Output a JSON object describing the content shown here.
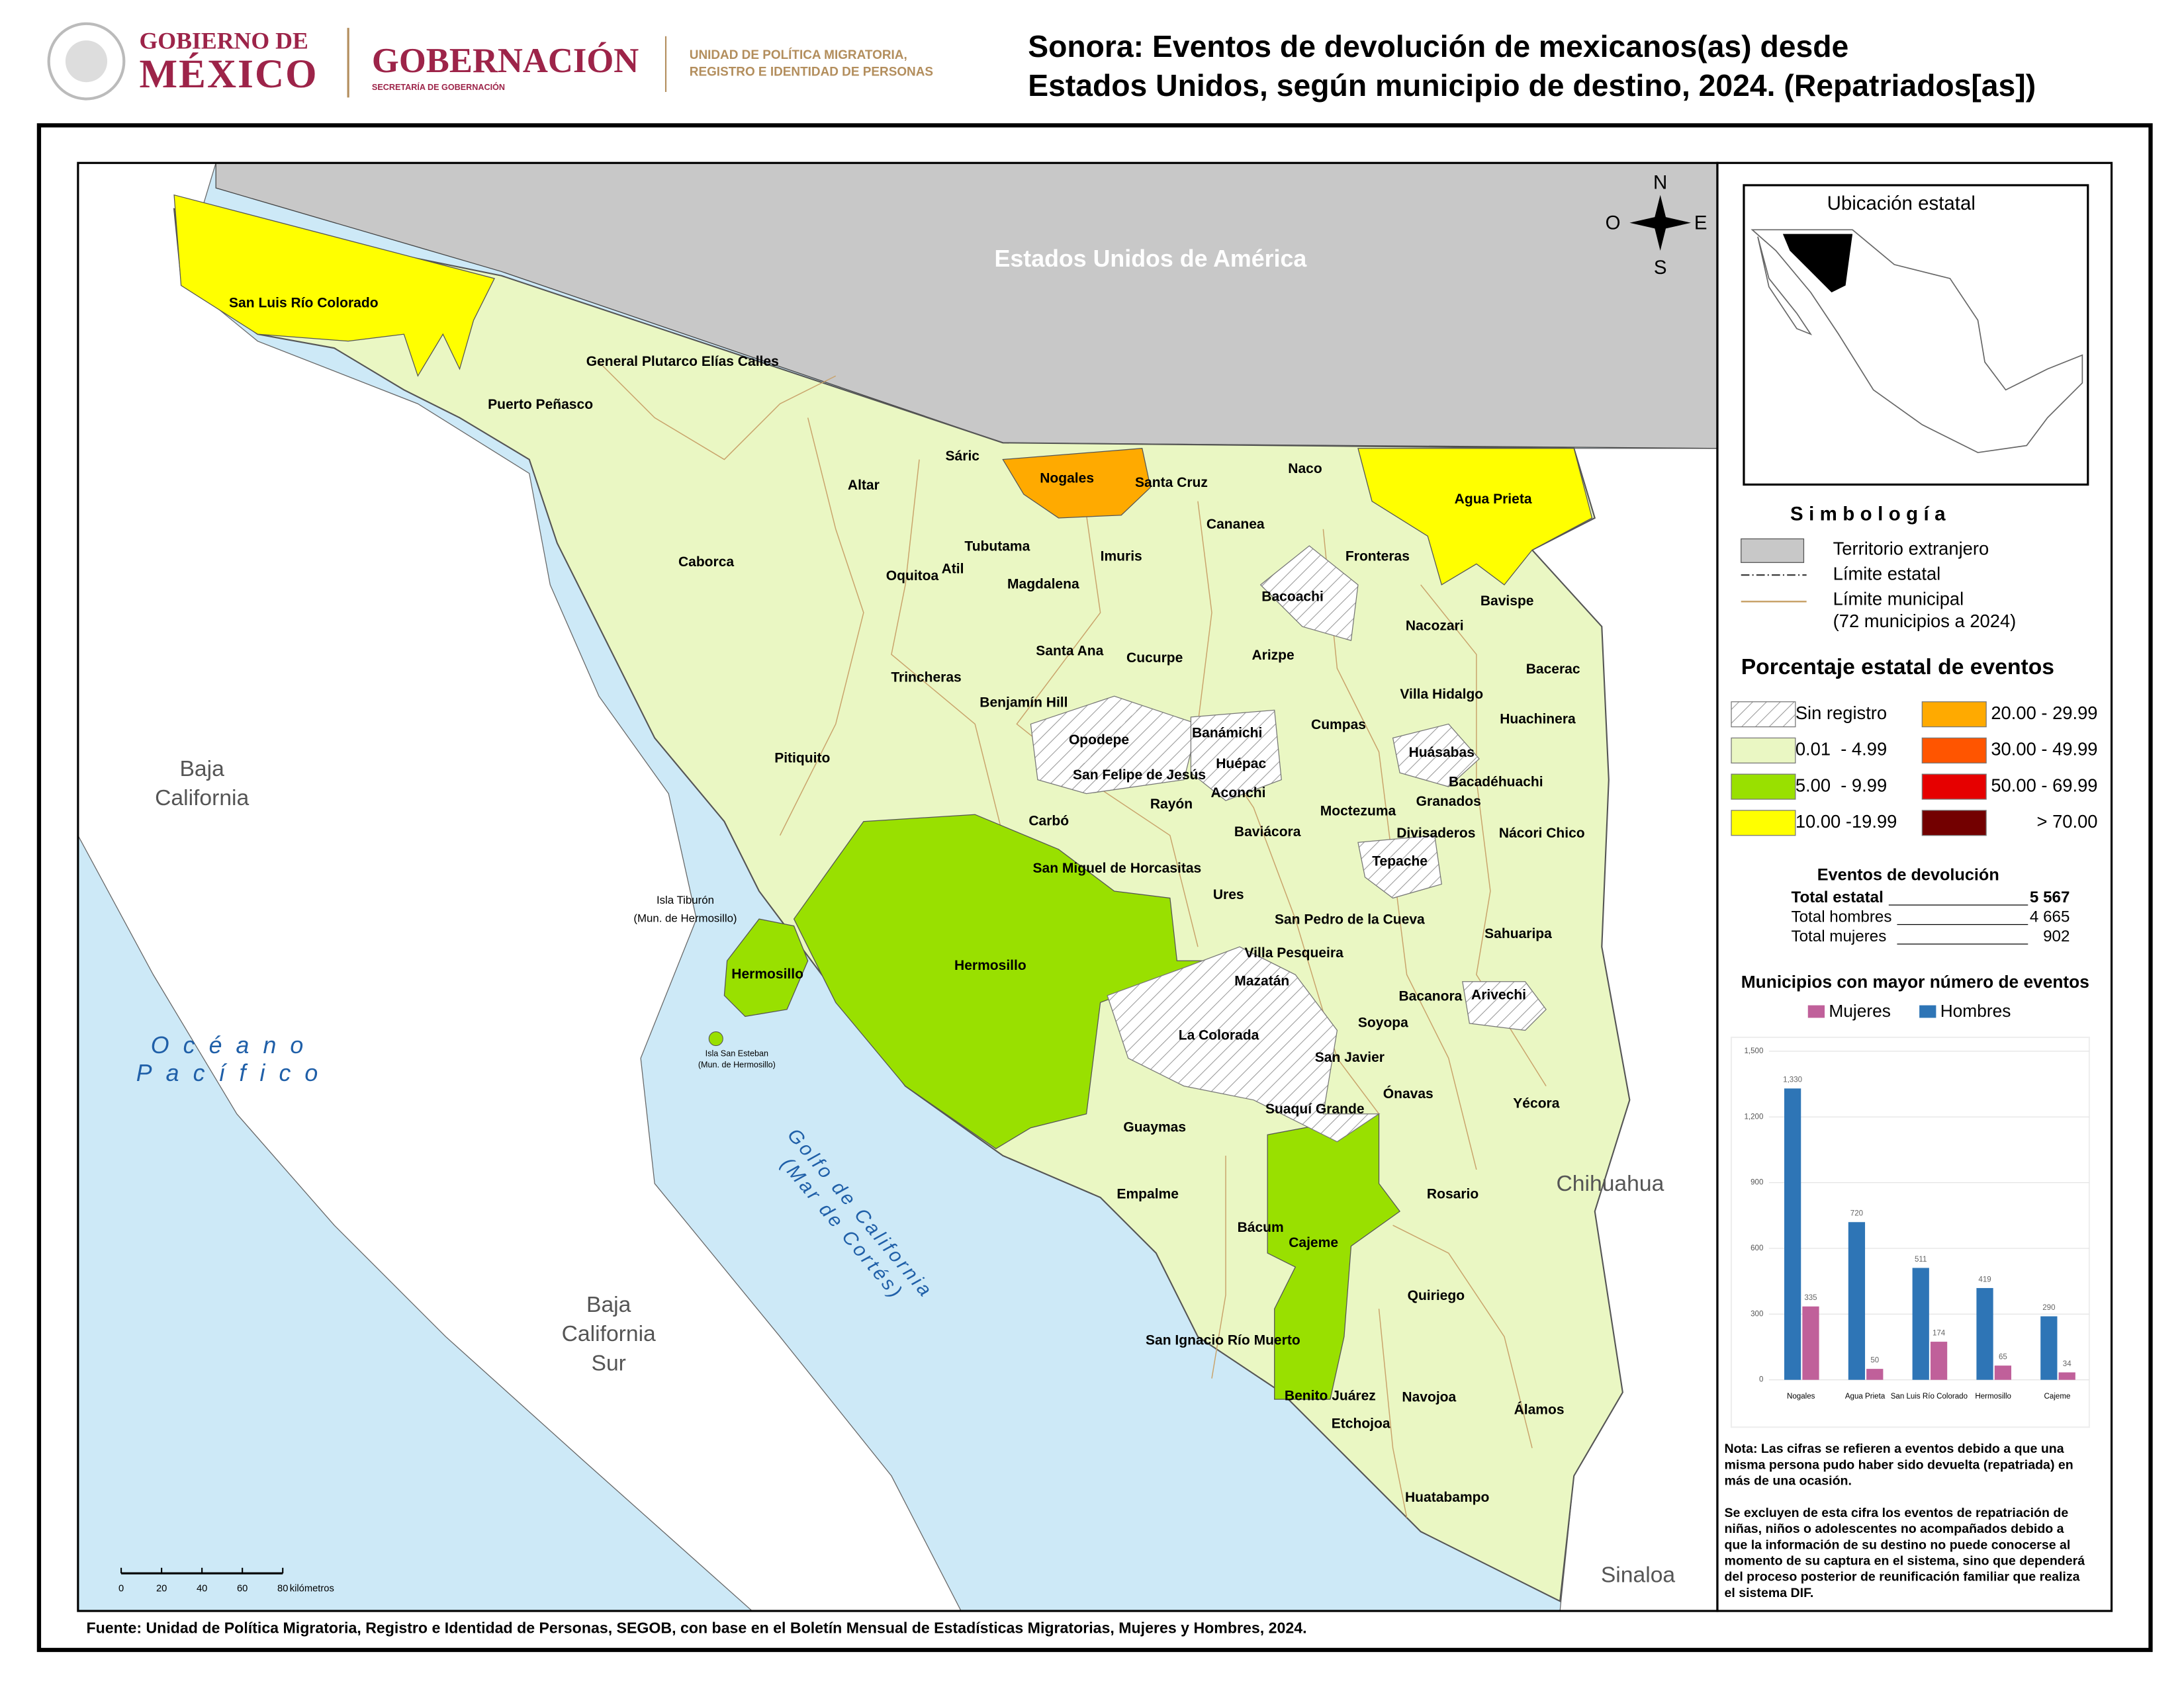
{
  "header": {
    "logo_line_1": "GOBIERNO DE",
    "logo_line_2": "MÉXICO",
    "agency": "GOBERNACIÓN",
    "agency_sub": "SECRETARÍA DE GOBERNACIÓN",
    "unit_line_1": "UNIDAD DE POLÍTICA MIGRATORIA,",
    "unit_line_2": "REGISTRO E IDENTIDAD DE PERSONAS",
    "title_lines": [
      "Sonora: Eventos de devolución de mexicanos(as) desde",
      "Estados Unidos, según municipio de destino, 2024. (Repatriados[as])"
    ]
  },
  "map": {
    "regions": [
      {
        "lines": [
          "Estados Unidos de América"
        ]
      },
      {
        "lines": [
          "Baja",
          "California"
        ]
      },
      {
        "lines": [
          "Baja",
          "California",
          "Sur"
        ]
      },
      {
        "lines": [
          "Chihuahua"
        ]
      },
      {
        "lines": [
          "Sinaloa"
        ]
      }
    ],
    "sea_labels": [
      {
        "lines": [
          "Océano",
          "Pacífico"
        ]
      },
      {
        "lines": [
          "Golfo de California",
          "(Mar de Cortés)"
        ]
      }
    ],
    "municipalities": [
      "San Luis Río Colorado",
      "General Plutarco Elías Calles",
      "Puerto Peñasco",
      "Caborca",
      "Altar",
      "Sáric",
      "Nogales",
      "Santa Cruz",
      "Naco",
      "Agua Prieta",
      "Cananea",
      "Tubutama",
      "Atil",
      "Oquitoa",
      "Imuris",
      "Magdalena",
      "Fronteras",
      "Bacoachi",
      "Bavispe",
      "Nacozari",
      "Santa Ana",
      "Cucurpe",
      "Arizpe",
      "Bacerac",
      "Trincheras",
      "Benjamín Hill",
      "Villa Hidalgo",
      "Huachinera",
      "Cumpas",
      "Opodepe",
      "Banámichi",
      "Huásabas",
      "Pitiquito",
      "Huépac",
      "San Felipe de Jesús",
      "Bacadéhuachi",
      "Aconchi",
      "Rayón",
      "Granados",
      "Moctezuma",
      "Carbó",
      "Baviácora",
      "Divisaderos",
      "Nácori Chico",
      "Tepache",
      "San Miguel de Horcasitas",
      "Ures",
      "San Pedro de la Cueva",
      "Sahuaripa",
      "Hermosillo",
      "Villa Pesqueira",
      "Mazatán",
      "Bacanora",
      "Arivechi",
      "La Colorada",
      "Soyopa",
      "San Javier",
      "Ónavas",
      "Yécora",
      "Suaquí Grande",
      "Guaymas",
      "Rosario",
      "Empalme",
      "Bácum",
      "Cajeme",
      "Quiriego",
      "San Ignacio Río Muerto",
      "Benito Juárez",
      "Navojoa",
      "Álamos",
      "Etchojoa",
      "Huatabampo"
    ],
    "islands": [
      "Isla Tiburón",
      "(Mun. de Hermosillo)",
      "Hermosillo",
      "Isla San Esteban",
      "(Mun. de Hermosillo)"
    ],
    "compass": [
      "N",
      "O",
      "E",
      "S"
    ],
    "scale": {
      "ticks": [
        0,
        20,
        40,
        60,
        80
      ],
      "unit": "kilómetros"
    }
  },
  "inset_title": "Ubicación estatal",
  "legend": {
    "title": "Simbología",
    "items": [
      "Territorio extranjero",
      "Límite estatal",
      "Límite municipal",
      "(72 municipios a 2024)"
    ],
    "classes_title": "Porcentaje estatal de eventos",
    "classes": [
      {
        "label": "Sin registro",
        "color": "hatch"
      },
      {
        "label": "0.01  - 4.99",
        "color": "#eaf7c3"
      },
      {
        "label": "5.00  - 9.99",
        "color": "#99e000"
      },
      {
        "label": "10.00 -19.99",
        "color": "#ffff00"
      },
      {
        "label": "20.00 - 29.99",
        "color": "#ffaa00"
      },
      {
        "label": "30.00 - 49.99",
        "color": "#ff5500"
      },
      {
        "label": "50.00 - 69.99",
        "color": "#e60000"
      },
      {
        "label": "> 70.00",
        "color": "#730000"
      }
    ]
  },
  "totals": {
    "title": "Eventos de devolución",
    "rows": [
      {
        "label": "Total estatal",
        "value": "5 567"
      },
      {
        "label": "Total hombres",
        "value": "4 665"
      },
      {
        "label": "Total mujeres",
        "value": "902"
      }
    ]
  },
  "chart_data": {
    "type": "bar",
    "title": "Municipios con mayor número de eventos",
    "categories": [
      "Nogales",
      "Agua Prieta",
      "San Luis Río Colorado",
      "Hermosillo",
      "Cajeme"
    ],
    "series": [
      {
        "name": "Mujeres",
        "color": "#c0609a",
        "values": [
          335,
          50,
          174,
          65,
          34
        ]
      },
      {
        "name": "Hombres",
        "color": "#2e75b6",
        "values": [
          1330,
          720,
          511,
          419,
          290
        ],
        "value_labels": [
          "1,330",
          "720",
          "511",
          "419",
          "290"
        ]
      }
    ],
    "ylim": [
      0,
      1500
    ],
    "yticks": [
      0,
      300,
      600,
      900,
      {
        "value": 1200,
        "label": "1,200"
      },
      {
        "value": 1500,
        "label": "1,500"
      }
    ],
    "grid": true
  },
  "notes": [
    [
      "Nota: Las cifras se refieren a eventos debido a que una",
      "misma persona pudo haber sido devuelta (repatriada) en",
      "más de una ocasión."
    ],
    [
      "Se excluyen de esta cifra los eventos de repatriación de",
      "niñas, niños o adolescentes no acompañados debido a",
      "que la información de su destino no puede conocerse al",
      "momento de su captura en el sistema, sino que dependerá",
      "del proceso posterior de reunificación familiar que realiza",
      "el sistema DIF."
    ]
  ],
  "source": "Fuente: Unidad de Política Migratoria, Registro e Identidad de Personas, SEGOB, con base en el Boletín Mensual de Estadísticas Migratorias, Mujeres y Hombres, 2024."
}
